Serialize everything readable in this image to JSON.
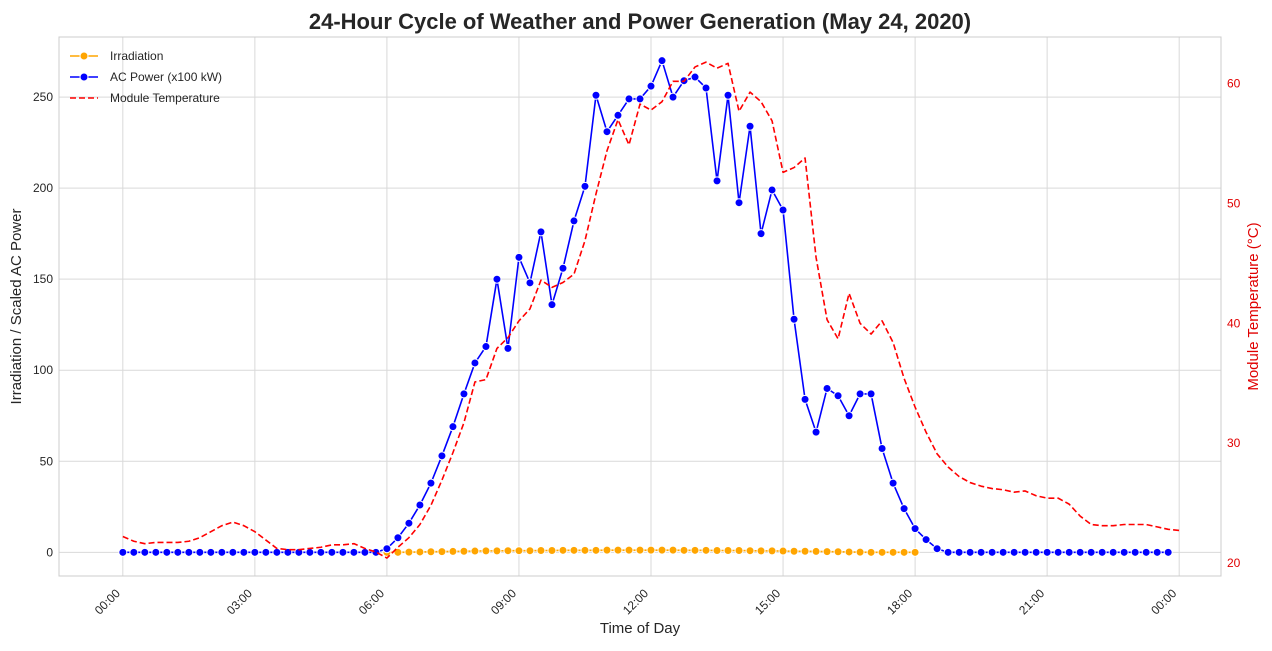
{
  "chart_data": {
    "type": "line",
    "title": "24-Hour Cycle of Weather and Power Generation (May 24, 2020)",
    "xlabel": "Time of Day",
    "ylabel": "Irradiation / Scaled AC Power",
    "ylabel_right": "Module Temperature (°C)",
    "x_ticks": [
      "00:00",
      "03:00",
      "06:00",
      "09:00",
      "12:00",
      "15:00",
      "18:00",
      "21:00",
      "00:00"
    ],
    "x_tick_hours": [
      0,
      3,
      6,
      9,
      12,
      15,
      18,
      21,
      24
    ],
    "xlim_hours": [
      -1.45,
      24.95
    ],
    "y_ticks": [
      0,
      50,
      100,
      150,
      200,
      250
    ],
    "ylim": [
      -13,
      283
    ],
    "y2_ticks": [
      20,
      30,
      40,
      50,
      60
    ],
    "y2lim": [
      18.9,
      63.9
    ],
    "grid": true,
    "legend_position": "top-left",
    "colors": {
      "irradiation": "#FFA500",
      "ac_power": "#0000FF",
      "module_temperature": "#FF0000",
      "grid": "#d9d9d9"
    },
    "series": [
      {
        "name": "Irradiation",
        "axis": "left",
        "style": "solid-marker",
        "x_start_hours": 6,
        "x_step_hours": 0.25,
        "values": [
          0,
          0,
          0.1,
          0.2,
          0.3,
          0.4,
          0.5,
          0.6,
          0.7,
          0.8,
          0.8,
          0.9,
          0.9,
          0.9,
          1.0,
          1.0,
          1.1,
          1.1,
          1.1,
          1.1,
          1.2,
          1.2,
          1.2,
          1.2,
          1.2,
          1.2,
          1.2,
          1.1,
          1.1,
          1.1,
          1.0,
          1.0,
          1.0,
          0.9,
          0.8,
          0.8,
          0.7,
          0.6,
          0.6,
          0.5,
          0.4,
          0.3,
          0.2,
          0.1,
          0.0,
          0.0,
          0.0,
          0.0,
          0.0
        ]
      },
      {
        "name": "AC Power (x100 kW)",
        "axis": "left",
        "style": "solid-marker",
        "x_start_hours": 0,
        "x_step_hours": 0.25,
        "values": [
          0,
          0,
          0,
          0,
          0,
          0,
          0,
          0,
          0,
          0,
          0,
          0,
          0,
          0,
          0,
          0,
          0,
          0,
          0,
          0,
          0,
          0,
          0,
          0,
          2,
          8,
          16,
          26,
          38,
          53,
          69,
          87,
          104,
          113,
          150,
          112,
          162,
          148,
          176,
          136,
          156,
          182,
          201,
          251,
          231,
          240,
          249,
          249,
          256,
          270,
          250,
          259,
          261,
          255,
          204,
          251,
          192,
          234,
          175,
          199,
          188,
          128,
          84,
          66,
          90,
          86,
          75,
          87,
          87,
          57,
          38,
          24,
          13,
          7,
          2,
          0,
          0,
          0,
          0,
          0,
          0,
          0,
          0,
          0,
          0,
          0,
          0,
          0,
          0,
          0,
          0,
          0,
          0,
          0,
          0,
          0
        ]
      },
      {
        "name": "Module Temperature",
        "axis": "right",
        "style": "dashed",
        "x_start_hours": 0,
        "x_step_hours": 0.25,
        "values": [
          22.2,
          21.8,
          21.6,
          21.7,
          21.7,
          21.7,
          21.8,
          22.1,
          22.6,
          23.1,
          23.4,
          23.1,
          22.6,
          21.9,
          21.2,
          21.1,
          21.1,
          21.2,
          21.3,
          21.5,
          21.5,
          21.6,
          21.2,
          20.9,
          20.4,
          21.3,
          22.1,
          23.2,
          24.8,
          26.9,
          29.2,
          31.7,
          35.1,
          35.3,
          37.9,
          38.8,
          40.2,
          41.2,
          43.6,
          43.0,
          43.4,
          44.1,
          46.9,
          50.8,
          54.4,
          57.0,
          54.9,
          58.3,
          57.8,
          58.5,
          60.2,
          60.2,
          61.4,
          61.8,
          61.3,
          61.7,
          57.7,
          59.3,
          58.5,
          56.9,
          52.6,
          53.0,
          53.8,
          45.5,
          40.3,
          38.7,
          42.5,
          40.0,
          39.1,
          40.2,
          38.4,
          35.4,
          33.0,
          30.9,
          29.1,
          28.0,
          27.2,
          26.7,
          26.4,
          26.2,
          26.1,
          25.9,
          26.0,
          25.6,
          25.4,
          25.4,
          24.9,
          23.9,
          23.2,
          23.1,
          23.1,
          23.2,
          23.2,
          23.2,
          23.0,
          22.8,
          22.7
        ]
      }
    ]
  }
}
